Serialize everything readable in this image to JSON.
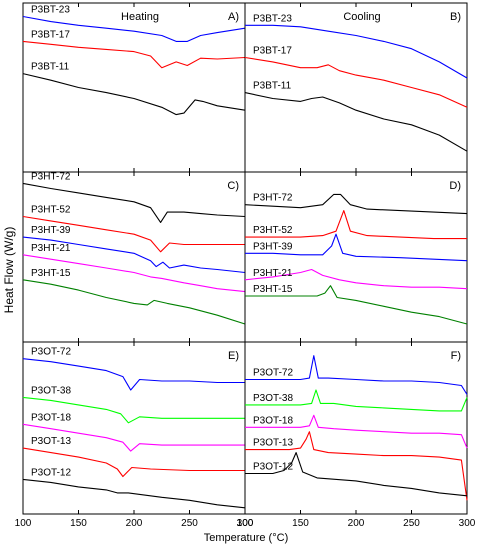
{
  "figure": {
    "ylabel": "Heat Flow (W/g)",
    "xlabel": "Temperature (°C)"
  },
  "chart_data": [
    {
      "type": "line",
      "panel": "A)",
      "title": "Heating",
      "xlim": [
        100,
        300
      ],
      "series": [
        {
          "name": "P3BT-23",
          "color": "#0000ff",
          "x": [
            100,
            125,
            150,
            175,
            200,
            225,
            238,
            248,
            260,
            275,
            300
          ],
          "y": [
            0.92,
            0.85,
            0.8,
            0.76,
            0.72,
            0.66,
            0.58,
            0.58,
            0.66,
            0.7,
            0.76
          ]
        },
        {
          "name": "P3BT-17",
          "color": "#ff0000",
          "x": [
            100,
            125,
            150,
            175,
            200,
            215,
            225,
            238,
            248,
            260,
            275,
            300
          ],
          "y": [
            0.58,
            0.54,
            0.5,
            0.47,
            0.44,
            0.38,
            0.22,
            0.3,
            0.25,
            0.35,
            0.34,
            0.36
          ]
        },
        {
          "name": "P3BT-11",
          "color": "#000000",
          "x": [
            100,
            125,
            150,
            175,
            200,
            225,
            238,
            245,
            255,
            262,
            275,
            300
          ],
          "y": [
            0.14,
            0.05,
            -0.05,
            -0.12,
            -0.2,
            -0.32,
            -0.42,
            -0.4,
            -0.22,
            -0.24,
            -0.3,
            -0.36
          ]
        }
      ]
    },
    {
      "type": "line",
      "panel": "B)",
      "title": "Cooling",
      "xlim": [
        100,
        300
      ],
      "series": [
        {
          "name": "P3BT-23",
          "color": "#0000ff",
          "x": [
            100,
            125,
            150,
            175,
            200,
            225,
            250,
            275,
            300
          ],
          "y": [
            0.8,
            0.8,
            0.78,
            0.72,
            0.66,
            0.58,
            0.48,
            0.3,
            0.08
          ]
        },
        {
          "name": "P3BT-17",
          "color": "#ff0000",
          "x": [
            100,
            125,
            150,
            165,
            175,
            185,
            200,
            225,
            250,
            275,
            300
          ],
          "y": [
            0.36,
            0.3,
            0.22,
            0.22,
            0.26,
            0.18,
            0.12,
            0.05,
            -0.05,
            -0.15,
            -0.32
          ]
        },
        {
          "name": "P3BT-11",
          "color": "#000000",
          "x": [
            100,
            125,
            150,
            160,
            170,
            185,
            200,
            225,
            250,
            275,
            300
          ],
          "y": [
            -0.12,
            -0.2,
            -0.24,
            -0.2,
            -0.18,
            -0.26,
            -0.36,
            -0.48,
            -0.56,
            -0.7,
            -0.92
          ]
        }
      ]
    },
    {
      "type": "line",
      "panel": "C)",
      "title": "",
      "xlim": [
        100,
        300
      ],
      "series": [
        {
          "name": "P3HT-72",
          "color": "#000000",
          "x": [
            100,
            125,
            150,
            175,
            200,
            215,
            224,
            230,
            245,
            260,
            275,
            300
          ],
          "y": [
            0.95,
            0.88,
            0.82,
            0.76,
            0.7,
            0.62,
            0.42,
            0.56,
            0.56,
            0.54,
            0.52,
            0.5
          ]
        },
        {
          "name": "P3HT-52",
          "color": "#ff0000",
          "x": [
            100,
            125,
            150,
            175,
            200,
            215,
            224,
            232,
            245,
            260,
            275,
            300
          ],
          "y": [
            0.5,
            0.44,
            0.38,
            0.32,
            0.26,
            0.18,
            0.02,
            0.14,
            0.12,
            0.12,
            0.12,
            0.12
          ]
        },
        {
          "name": "P3HT-39",
          "color": "#0000ff",
          "x": [
            100,
            125,
            150,
            175,
            200,
            215,
            220,
            226,
            232,
            245,
            260,
            275,
            300
          ],
          "y": [
            0.22,
            0.18,
            0.12,
            0.06,
            0.0,
            -0.1,
            -0.18,
            -0.12,
            -0.2,
            -0.16,
            -0.2,
            -0.22,
            -0.26
          ]
        },
        {
          "name": "P3HT-21",
          "color": "#ff00ff",
          "x": [
            100,
            125,
            150,
            175,
            200,
            215,
            225,
            245,
            260,
            275,
            300
          ],
          "y": [
            -0.02,
            -0.08,
            -0.14,
            -0.2,
            -0.26,
            -0.32,
            -0.34,
            -0.4,
            -0.44,
            -0.48,
            -0.52
          ]
        },
        {
          "name": "P3HT-15",
          "color": "#008000",
          "x": [
            100,
            125,
            150,
            175,
            200,
            212,
            218,
            230,
            250,
            275,
            300
          ],
          "y": [
            -0.36,
            -0.42,
            -0.5,
            -0.6,
            -0.68,
            -0.7,
            -0.64,
            -0.68,
            -0.74,
            -0.84,
            -0.96
          ]
        }
      ]
    },
    {
      "type": "line",
      "panel": "D)",
      "title": "",
      "xlim": [
        100,
        300
      ],
      "series": [
        {
          "name": "P3HT-72",
          "color": "#000000",
          "x": [
            100,
            125,
            150,
            170,
            180,
            186,
            195,
            210,
            240,
            270,
            300
          ],
          "y": [
            0.66,
            0.64,
            0.62,
            0.66,
            0.8,
            0.8,
            0.66,
            0.6,
            0.58,
            0.56,
            0.54
          ]
        },
        {
          "name": "P3HT-52",
          "color": "#ff0000",
          "x": [
            100,
            125,
            150,
            170,
            182,
            189,
            195,
            210,
            240,
            270,
            300
          ],
          "y": [
            0.22,
            0.22,
            0.22,
            0.24,
            0.3,
            0.58,
            0.3,
            0.24,
            0.22,
            0.2,
            0.2
          ]
        },
        {
          "name": "P3HT-39",
          "color": "#0000ff",
          "x": [
            100,
            125,
            150,
            170,
            178,
            182,
            188,
            200,
            240,
            270,
            300
          ],
          "y": [
            0.0,
            0.0,
            -0.02,
            -0.02,
            0.1,
            0.26,
            0.0,
            -0.04,
            -0.06,
            -0.08,
            -0.1
          ]
        },
        {
          "name": "P3HT-21",
          "color": "#ff00ff",
          "x": [
            100,
            125,
            150,
            160,
            170,
            185,
            200,
            225,
            250,
            275,
            300
          ],
          "y": [
            -0.36,
            -0.32,
            -0.26,
            -0.22,
            -0.3,
            -0.36,
            -0.4,
            -0.44,
            -0.46,
            -0.46,
            -0.48
          ]
        },
        {
          "name": "P3HT-15",
          "color": "#008000",
          "x": [
            100,
            125,
            150,
            165,
            172,
            177,
            183,
            200,
            225,
            250,
            275,
            300
          ],
          "y": [
            -0.58,
            -0.58,
            -0.58,
            -0.58,
            -0.54,
            -0.44,
            -0.6,
            -0.64,
            -0.72,
            -0.8,
            -0.86,
            -0.96
          ]
        }
      ]
    },
    {
      "type": "line",
      "panel": "E)",
      "title": "",
      "xlim": [
        100,
        300
      ],
      "series": [
        {
          "name": "P3OT-72",
          "color": "#0000ff",
          "x": [
            100,
            125,
            150,
            175,
            190,
            197,
            205,
            225,
            250,
            275,
            300
          ],
          "y": [
            0.88,
            0.84,
            0.78,
            0.72,
            0.64,
            0.46,
            0.6,
            0.58,
            0.58,
            0.56,
            0.56
          ]
        },
        {
          "name": "P3OT-38",
          "color": "#00ff00",
          "x": [
            100,
            125,
            150,
            175,
            188,
            195,
            205,
            225,
            250,
            275,
            300
          ],
          "y": [
            0.36,
            0.32,
            0.26,
            0.2,
            0.14,
            0.02,
            0.1,
            0.08,
            0.08,
            0.08,
            0.08
          ]
        },
        {
          "name": "P3OT-18",
          "color": "#ff00ff",
          "x": [
            100,
            125,
            150,
            175,
            190,
            197,
            205,
            225,
            250,
            275,
            300
          ],
          "y": [
            0.0,
            -0.06,
            -0.12,
            -0.18,
            -0.24,
            -0.36,
            -0.26,
            -0.28,
            -0.28,
            -0.28,
            -0.28
          ]
        },
        {
          "name": "P3OT-13",
          "color": "#ff0000",
          "x": [
            100,
            125,
            150,
            175,
            185,
            190,
            198,
            215,
            250,
            275,
            300
          ],
          "y": [
            -0.32,
            -0.38,
            -0.44,
            -0.52,
            -0.6,
            -0.7,
            -0.58,
            -0.6,
            -0.62,
            -0.62,
            -0.62
          ]
        },
        {
          "name": "P3OT-12",
          "color": "#000000",
          "x": [
            100,
            125,
            150,
            175,
            185,
            195,
            225,
            250,
            275,
            300
          ],
          "y": [
            -0.74,
            -0.78,
            -0.84,
            -0.88,
            -0.92,
            -0.92,
            -0.98,
            -1.02,
            -1.08,
            -1.12
          ]
        }
      ]
    },
    {
      "type": "line",
      "panel": "F)",
      "title": "",
      "xlim": [
        100,
        300
      ],
      "series": [
        {
          "name": "P3OT-72",
          "color": "#0000ff",
          "x": [
            100,
            125,
            150,
            158,
            162,
            166,
            175,
            200,
            225,
            250,
            275,
            295,
            300
          ],
          "y": [
            0.6,
            0.6,
            0.6,
            0.62,
            0.92,
            0.62,
            0.62,
            0.6,
            0.58,
            0.58,
            0.56,
            0.52,
            0.4
          ]
        },
        {
          "name": "P3OT-38",
          "color": "#00ff00",
          "x": [
            100,
            125,
            150,
            160,
            164,
            168,
            180,
            200,
            225,
            250,
            275,
            295,
            300
          ],
          "y": [
            0.26,
            0.26,
            0.26,
            0.28,
            0.46,
            0.28,
            0.28,
            0.24,
            0.22,
            0.2,
            0.18,
            0.18,
            0.36
          ]
        },
        {
          "name": "P3OT-18",
          "color": "#ff00ff",
          "x": [
            100,
            125,
            150,
            158,
            162,
            166,
            180,
            200,
            225,
            250,
            275,
            295,
            300
          ],
          "y": [
            -0.04,
            -0.04,
            -0.04,
            -0.02,
            0.12,
            -0.04,
            -0.06,
            -0.08,
            -0.1,
            -0.12,
            -0.12,
            -0.14,
            -0.32
          ]
        },
        {
          "name": "P3OT-13",
          "color": "#ff0000",
          "x": [
            100,
            125,
            140,
            150,
            155,
            158,
            162,
            175,
            200,
            225,
            250,
            275,
            295,
            300
          ],
          "y": [
            -0.34,
            -0.34,
            -0.34,
            -0.32,
            -0.2,
            -0.1,
            -0.34,
            -0.38,
            -0.4,
            -0.42,
            -0.42,
            -0.44,
            -0.48,
            -1.02
          ]
        },
        {
          "name": "P3OT-12",
          "color": "#000000",
          "x": [
            100,
            125,
            135,
            142,
            146,
            152,
            165,
            200,
            225,
            250,
            275,
            300
          ],
          "y": [
            -0.66,
            -0.66,
            -0.62,
            -0.52,
            -0.38,
            -0.64,
            -0.72,
            -0.76,
            -0.82,
            -0.86,
            -0.92,
            -0.96
          ]
        }
      ]
    }
  ],
  "axes": {
    "x_ticks": [
      "100",
      "150",
      "200",
      "250",
      "300"
    ],
    "x_tick_values": [
      100,
      150,
      200,
      250,
      300
    ]
  }
}
